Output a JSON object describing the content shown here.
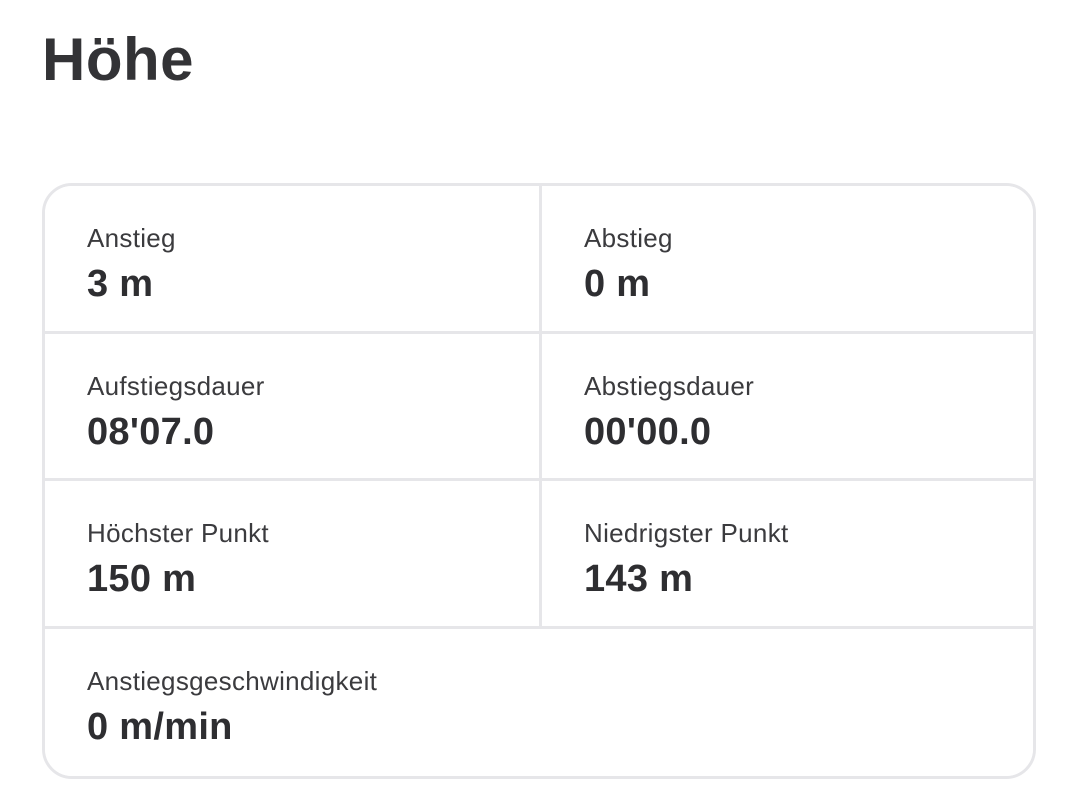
{
  "header": {
    "title": "Höhe"
  },
  "stats": {
    "cells": [
      {
        "id": "ascent",
        "label": "Anstieg",
        "value": "3 m"
      },
      {
        "id": "descent",
        "label": "Abstieg",
        "value": "0 m"
      },
      {
        "id": "ascent-time",
        "label": "Aufstiegsdauer",
        "value": "08'07.0"
      },
      {
        "id": "descent-time",
        "label": "Abstiegsdauer",
        "value": "00'00.0"
      },
      {
        "id": "highest-point",
        "label": "Höchster Punkt",
        "value": "150 m"
      },
      {
        "id": "lowest-point",
        "label": "Niedrigster Punkt",
        "value": "143 m"
      },
      {
        "id": "ascent-speed",
        "label": "Anstiegsgeschwindigkeit",
        "value": "0 m/min"
      }
    ]
  },
  "colors": {
    "background": "#ffffff",
    "title": "#333336",
    "label": "#3b3b3e",
    "value": "#2e2e31",
    "border": "#e6e6e9"
  }
}
